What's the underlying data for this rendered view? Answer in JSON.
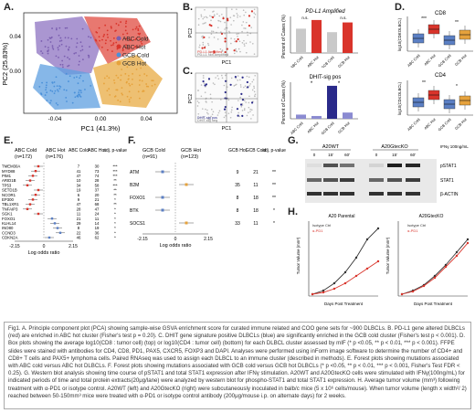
{
  "panels": {
    "A": "A.",
    "B": "B.",
    "C": "C.",
    "D": "D.",
    "E": "E.",
    "F": "F.",
    "G": "G.",
    "H": "H."
  },
  "panelA": {
    "xlabel": "PC1 (41.3%)",
    "ylabel": "PC2 (25.83%)",
    "xticks": [
      "-0.04",
      "0.00",
      "0.04"
    ],
    "yticks": [
      "0.04",
      "0.00"
    ],
    "legend": [
      "ABC Cold",
      "ABC Hot",
      "GCB Cold",
      "GCB Hot"
    ],
    "colors": {
      "abc_cold": "#7b5fb0",
      "abc_hot": "#d9342b",
      "gcb_cold": "#4a90d9",
      "gcb_hot": "#e6a23c"
    }
  },
  "panelB": {
    "title": "PD-L1 Amplified",
    "ylabel": "Percent of Cases (%)",
    "xlabel": "PC1",
    "pc2": "PC2",
    "legend": [
      "PD-L1 Amplified",
      "PD-L1 Not Amplified"
    ],
    "ns": [
      "n.s.",
      "n.s."
    ],
    "bar_labels": [
      "ABC Cold",
      "ABC Hot",
      "GCB Cold",
      "GCB Hot"
    ]
  },
  "panelC": {
    "title": "DHIT-sig pos",
    "ylabel": "Percent of Cases (%)",
    "xlabel": "PC1",
    "pc2": "PC2",
    "legend": [
      "DHIT-sig pos",
      "DHIT-sig neg"
    ],
    "sig": [
      "*",
      "*"
    ],
    "bar_labels": [
      "ABC Cold",
      "ABC Hot",
      "GCB Cold",
      "GCB Hot"
    ]
  },
  "panelD": {
    "top_title": "CD8",
    "bottom_title": "CD4",
    "ylabel_top": "log10(CD8:DLBCL)",
    "ylabel_bottom": "log10(CD4:DLBCL)",
    "sig_top": [
      "***",
      "**"
    ],
    "sig_bottom": [
      "**",
      "*"
    ],
    "bar_labels": [
      "ABC Cold",
      "ABC Hot",
      "GCB Cold",
      "GCB Hot"
    ]
  },
  "panelE": {
    "header_left": "ABC Cold",
    "header_left_n": "(n=172)",
    "header_right": "ABC Hot",
    "header_right_n": "(n=176)",
    "col_headers": [
      "ABC Cold",
      "ABC Hot",
      "adj. p-value"
    ],
    "genes": [
      "TMEM30A",
      "MYD88",
      "PIM1",
      "ARID1B",
      "TP53",
      "SETD1B",
      "NCOR1",
      "EP300",
      "TBL1XR1",
      "TNFAIP3",
      "SGK1",
      "FOXO1",
      "KLHL14",
      "INO80",
      "CCND3",
      "CDKN2A"
    ],
    "cold": [
      "7",
      "41",
      "47",
      "10",
      "34",
      "19",
      "6",
      "9",
      "47",
      "28",
      "11",
      "21",
      "29",
      "8",
      "22",
      "46"
    ],
    "hot": [
      "30",
      "73",
      "74",
      "28",
      "58",
      "37",
      "20",
      "21",
      "68",
      "47",
      "24",
      "11",
      "14",
      "19",
      "36",
      "62"
    ],
    "pvals": [
      "***",
      "***",
      "***",
      "**",
      "***",
      "**",
      "**",
      "*",
      "**",
      "*",
      "*",
      "*",
      "*",
      "*",
      "*",
      "*"
    ],
    "xlabel": "Log odds ratio",
    "xticks": [
      "-2.15",
      "0",
      "2.15"
    ]
  },
  "panelF": {
    "header_left": "GCB Cold",
    "header_left_n": "(n=91)",
    "header_right": "GCB Hot",
    "header_right_n": "(n=123)",
    "col_headers": [
      "GCB Hot",
      "GCB Cold",
      "adj. p-value"
    ],
    "genes": [
      "ATM",
      "B2M",
      "FOXO1",
      "BTK",
      "SOCS1"
    ],
    "hot": [
      "9",
      "35",
      "8",
      "8",
      "33"
    ],
    "cold": [
      "21",
      "11",
      "18",
      "18",
      "11"
    ],
    "pvals": [
      "**",
      "**",
      "**",
      "*",
      "*"
    ],
    "xlabel": "Log odds ratio",
    "xticks": [
      "-2.15",
      "0",
      "2.15"
    ]
  },
  "panelG": {
    "group1": "A20WT",
    "group2": "A20GtecKO",
    "ifn_label": "IFNγ 100ng/mL",
    "timepoints": [
      "0",
      "15'",
      "60'",
      "0",
      "15'",
      "60'"
    ],
    "bands": [
      "pSTAT1",
      "STAT1",
      "β-ACTIN"
    ]
  },
  "panelH": {
    "left_title": "A20 Parental",
    "right_title": "A20GtecKO",
    "ylabel": "Tumor Volume (mm³)",
    "xlabel": "Days Post Treatment",
    "legend": [
      "Isotype Ctrl",
      "α-PD1"
    ]
  },
  "caption": "Fig1. A. Principle component plot (PCA) showing sample-wise GSVA enrichment score for curated immune related and COO gene sets for ~900 DLBCLs. B. PD-L1 gene altered DLBCLs (red) are enriched in ABC hot cluster (Fisher's test p = 0.20). C. DHIT gene signature positive DLBCLs (blue) are significantly enriched in the GCB cold cluster (Fisher's test p < 0.001). D. Box plots showing the average log10(CD8 : tumor cell) (top) or log10(CD4 : tumor cell) (bottom) for each DLBCL cluster assessed by mIF (* p <0.05, ** p < 0.01, *** p < 0.001). FFPE slides were stained with antibodies for CD4, CD8, PD1, PAX5, CXCR5, FOXP3 and DAPI. Analyses were performed using inForm image software to determine the number of CD4+ and CD8+ T cells and PAX5+ lymphoma cells. Paired RNAseq was used to assign each DLBCL to an immune cluster (described in methods). E. Forest plots showing mutations associated with ABC cold versus ABC hot DLBCLs. F. Forest plots showing mutations associated with GCB cold versus GCB hot DLBCLs (* p <0.05, ** p < 0.01, *** p < 0.001, Fisher's Test FDR < 0.25). G. Western blot analysis showing time course of pSTAT1 and total STAT1 expression after IFNγ stimulation. A20WT and A20GtecKO cells were stimulated with IFNγ(100ng/mL) for indicated periods of time and total protein extracts(20μg/lane) were analyzed by western blot for phospho-STAT1 and total STAT1 expression. H. Average tumor volume (mm³) following treatment with α-PD1 or isotype control. A20WT (left) and A20GtecKO (right) were subcutaneously inoculated in balb/c mice (5 x 10⁶ cells/mouse). When tumor volume (length x width²/ 2) reached between 50-150mm³ mice were treated with α-PD1 or isotype control antibody (200μg/mouse i.p. on alternate days) for 2 weeks."
}
